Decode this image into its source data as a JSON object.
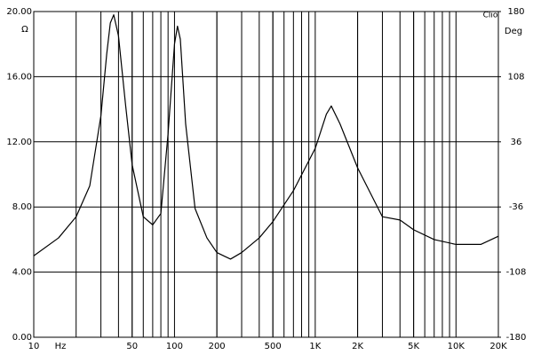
{
  "chart_data": {
    "type": "line",
    "brand": "Clio",
    "y_unit": "Ω",
    "y2_unit": "Deg",
    "x_unit": "Hz",
    "log_x": true,
    "grid": true,
    "minor_grid": true,
    "xlim": [
      10,
      20000
    ],
    "xticks": [
      10,
      50,
      100,
      200,
      500,
      {
        "value": 1000,
        "label": "1K"
      },
      {
        "value": 2000,
        "label": "2K"
      },
      {
        "value": 5000,
        "label": "5K"
      },
      {
        "value": 10000,
        "label": "10K"
      },
      {
        "value": 20000,
        "label": "20K"
      }
    ],
    "ylim": [
      0,
      20
    ],
    "yticks": [
      {
        "value": 0,
        "label": "0.00"
      },
      {
        "value": 4,
        "label": "4.00"
      },
      {
        "value": 8,
        "label": "8.00"
      },
      {
        "value": 12,
        "label": "12.00"
      },
      {
        "value": 16,
        "label": "16.00"
      },
      {
        "value": 20,
        "label": "20.00"
      }
    ],
    "y2lim": [
      -180,
      180
    ],
    "y2ticks": [
      -180,
      -108,
      -36,
      36,
      108,
      180
    ],
    "x": [
      10,
      15,
      20,
      25,
      30,
      33,
      35,
      37,
      40,
      45,
      50,
      60,
      70,
      80,
      90,
      100,
      105,
      110,
      120,
      140,
      170,
      200,
      250,
      300,
      400,
      500,
      700,
      1000,
      1200,
      1300,
      1500,
      2000,
      3000,
      4000,
      5000,
      7000,
      10000,
      15000,
      20000
    ],
    "series": [
      {
        "color": "#000000",
        "values": [
          5.0,
          6.1,
          7.4,
          9.3,
          13.6,
          17.4,
          19.3,
          19.8,
          18.5,
          14.2,
          10.6,
          7.4,
          6.9,
          7.6,
          12.5,
          18.0,
          19.1,
          18.3,
          13.1,
          7.9,
          6.1,
          5.2,
          4.8,
          5.2,
          6.1,
          7.1,
          9.0,
          11.6,
          13.7,
          14.2,
          13.1,
          10.4,
          7.4,
          7.2,
          6.6,
          6.0,
          5.7,
          5.7,
          6.2
        ]
      }
    ]
  }
}
